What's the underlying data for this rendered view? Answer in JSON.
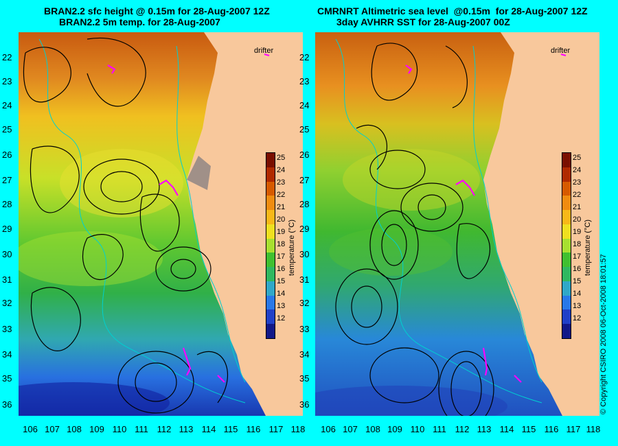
{
  "left_panel": {
    "title_line1": "BRAN2.2 sfc height @ 0.15m for 28-Aug-2007 12Z",
    "title_line2": "BRAN2.2 5m temp. for 28-Aug-2007"
  },
  "right_panel": {
    "title_line1": "CMRNRT Altimetric sea level  @0.15m  for 28-Aug-2007 12Z",
    "title_line2": "3day AVHRR SST for 28-Aug-2007 00Z"
  },
  "y_axis_labels": [
    "22",
    "23",
    "24",
    "25",
    "26",
    "27",
    "28",
    "29",
    "30",
    "31",
    "32",
    "33",
    "34",
    "35",
    "36"
  ],
  "x_axis_labels": [
    "106",
    "107",
    "108",
    "109",
    "110",
    "111",
    "112",
    "113",
    "114",
    "115",
    "116",
    "117",
    "118"
  ],
  "colorbar": {
    "title": "temperature (°C)",
    "ticks": [
      "25",
      "24",
      "23",
      "22",
      "21",
      "20",
      "19",
      "18",
      "17",
      "16",
      "15",
      "14",
      "13",
      "12"
    ],
    "colors": [
      "#7a0f00",
      "#b02a00",
      "#d65a00",
      "#f08c10",
      "#f8b818",
      "#f0e020",
      "#a8e030",
      "#40c030",
      "#30b860",
      "#30a8c8",
      "#2878e8",
      "#2040c8",
      "#101888"
    ]
  },
  "drifter_label": "drifter",
  "copyright": "© Copyright CSIRO 2008      06-Oct-2008 18:01:57",
  "colors": {
    "background": "#00ffff",
    "land": "#f8c89c",
    "drifter": "#ff00ff"
  }
}
